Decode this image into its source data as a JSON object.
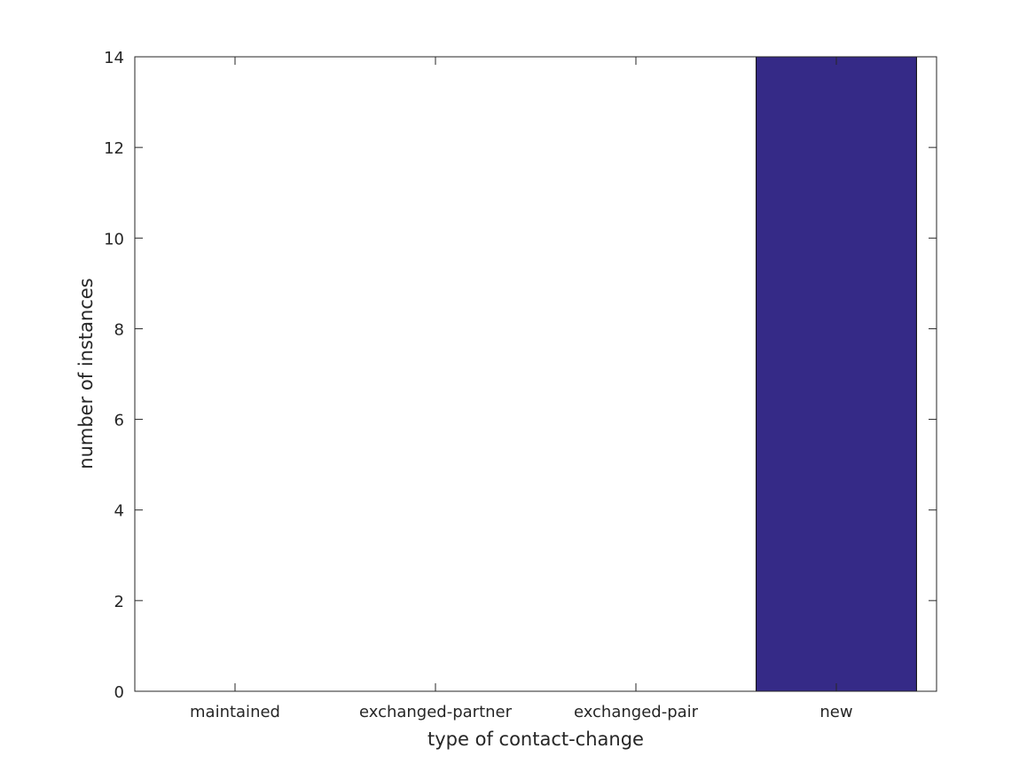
{
  "chart_data": {
    "type": "bar",
    "categories": [
      "maintained",
      "exchanged-partner",
      "exchanged-pair",
      "new"
    ],
    "values": [
      0,
      0,
      0,
      14
    ],
    "title": "",
    "xlabel": "type of contact-change",
    "ylabel": "number of instances",
    "ylim": [
      0,
      14
    ],
    "yticks": [
      0,
      2,
      4,
      6,
      8,
      10,
      12,
      14
    ],
    "grid": false,
    "bar_color": "#352a87"
  }
}
